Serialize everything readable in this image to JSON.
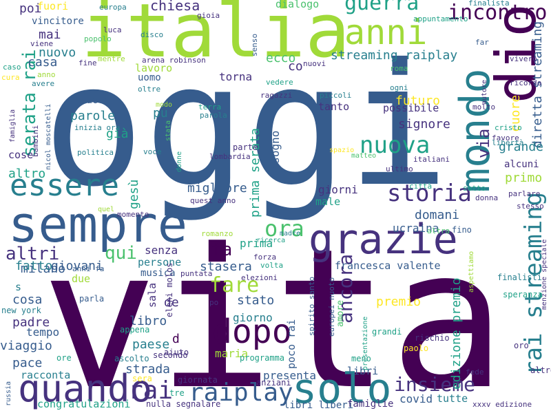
{
  "colors": {
    "background": "#ffffff",
    "palette": [
      "#440154",
      "#46327e",
      "#365c8d",
      "#277f8e",
      "#1fa187",
      "#4ac16d",
      "#a0da39",
      "#fde725"
    ]
  },
  "words": [
    {
      "text": "oggi"
    },
    {
      "text": "vita"
    },
    {
      "text": "italia"
    },
    {
      "text": "mondo"
    },
    {
      "text": "anni"
    },
    {
      "text": "dio"
    },
    {
      "text": "sempre"
    },
    {
      "text": "grazie"
    },
    {
      "text": "essere"
    },
    {
      "text": "solo"
    },
    {
      "text": "quando"
    },
    {
      "text": "dopo"
    },
    {
      "text": "guerra"
    },
    {
      "text": "incontro"
    },
    {
      "text": "storia"
    },
    {
      "text": "rai streaming"
    },
    {
      "text": "raiplay"
    },
    {
      "text": "rai"
    },
    {
      "text": "nuova"
    },
    {
      "text": "insieme"
    },
    {
      "text": "serata rai"
    },
    {
      "text": "ora"
    },
    {
      "text": "fare"
    },
    {
      "text": "ancora"
    },
    {
      "text": "qui"
    },
    {
      "text": "altri"
    },
    {
      "text": "fa"
    },
    {
      "text": "streaming raiplay"
    },
    {
      "text": "via"
    },
    {
      "text": "diretta streaming"
    },
    {
      "text": "edizione premio"
    },
    {
      "text": "chiesa"
    },
    {
      "text": "poi"
    },
    {
      "text": "fuori"
    },
    {
      "text": "dialogo"
    },
    {
      "text": "vincitore"
    },
    {
      "text": "mai"
    },
    {
      "text": "nuovo"
    },
    {
      "text": "casa"
    },
    {
      "text": "lavoro"
    },
    {
      "text": "co"
    },
    {
      "text": "ecco"
    },
    {
      "text": "torna"
    },
    {
      "text": "parole"
    },
    {
      "text": "già"
    },
    {
      "text": "pu"
    },
    {
      "text": "uomo"
    },
    {
      "text": "vuole"
    },
    {
      "text": "futuro"
    },
    {
      "text": "signore"
    },
    {
      "text": "possibile"
    },
    {
      "text": "tanto"
    },
    {
      "text": "cuore"
    },
    {
      "text": "grande"
    },
    {
      "text": "primo"
    },
    {
      "text": "alcuni"
    },
    {
      "text": "bisogno"
    },
    {
      "text": "prima serata"
    },
    {
      "text": "migliore"
    },
    {
      "text": "giorni"
    },
    {
      "text": "male"
    },
    {
      "text": "domani"
    },
    {
      "text": "ucraina"
    },
    {
      "text": "francesca valente"
    },
    {
      "text": "premio"
    },
    {
      "text": "stato"
    },
    {
      "text": "giorno"
    },
    {
      "text": "stasera"
    },
    {
      "text": "prima"
    },
    {
      "text": "persone"
    },
    {
      "text": "senza"
    },
    {
      "text": "milano"
    },
    {
      "text": "cosa"
    },
    {
      "text": "padre"
    },
    {
      "text": "tempo"
    },
    {
      "text": "viaggio"
    },
    {
      "text": "pace"
    },
    {
      "text": "racconta"
    },
    {
      "text": "strada"
    },
    {
      "text": "libro"
    },
    {
      "text": "paese"
    },
    {
      "text": "maria"
    },
    {
      "text": "poco rai"
    },
    {
      "text": "presenta"
    },
    {
      "text": "libri"
    },
    {
      "text": "covid"
    },
    {
      "text": "tutte"
    },
    {
      "text": "congratulazioni"
    },
    {
      "text": "libri liberi"
    },
    {
      "text": "famiglie"
    },
    {
      "text": "xxxv edizione"
    },
    {
      "text": "altro"
    },
    {
      "text": "fatto"
    },
    {
      "text": "giovani"
    },
    {
      "text": "cose"
    },
    {
      "text": "gesù"
    },
    {
      "text": "musica"
    },
    {
      "text": "due"
    },
    {
      "text": "s"
    },
    {
      "text": "de"
    },
    {
      "text": "sala"
    },
    {
      "text": "d"
    },
    {
      "text": "parla"
    },
    {
      "text": "anni fa"
    },
    {
      "text": "new york"
    },
    {
      "text": "ore"
    },
    {
      "text": "ascolto"
    },
    {
      "text": "secondo"
    },
    {
      "text": "eleni molos"
    },
    {
      "text": "aiuto"
    },
    {
      "text": "appena"
    },
    {
      "text": "giornata"
    },
    {
      "text": "nulla segnalare"
    },
    {
      "text": "tre"
    },
    {
      "text": "sera"
    },
    {
      "text": "anziani"
    },
    {
      "text": "russia"
    },
    {
      "text": "programma"
    },
    {
      "text": "spirito santo"
    },
    {
      "text": "europei nuoto"
    },
    {
      "text": "amore"
    },
    {
      "text": "presentazione"
    },
    {
      "text": "grandi"
    },
    {
      "text": "meno"
    },
    {
      "text": "paolo"
    },
    {
      "text": "rischio"
    },
    {
      "text": "fede"
    },
    {
      "text": "oro"
    },
    {
      "text": "altro nulla"
    },
    {
      "text": "menzione speciale"
    },
    {
      "text": "speranza"
    },
    {
      "text": "finalisti"
    },
    {
      "text": "aspettiamo"
    },
    {
      "text": "europa"
    },
    {
      "text": "gioia"
    },
    {
      "text": "appuntamento"
    },
    {
      "text": "finalista"
    },
    {
      "text": "luca"
    },
    {
      "text": "disco"
    },
    {
      "text": "popolo"
    },
    {
      "text": "viene"
    },
    {
      "text": "senso"
    },
    {
      "text": "far"
    },
    {
      "text": "vivere"
    },
    {
      "text": "fine"
    },
    {
      "text": "mentre"
    },
    {
      "text": "arena robinson"
    },
    {
      "text": "nuovi"
    },
    {
      "text": "roma"
    },
    {
      "text": "caso"
    },
    {
      "text": "cura"
    },
    {
      "text": "anno"
    },
    {
      "text": "avere"
    },
    {
      "text": "oltre"
    },
    {
      "text": "vedere"
    },
    {
      "text": "ragazzi"
    },
    {
      "text": "piccoli"
    },
    {
      "text": "ogni"
    },
    {
      "text": "autore"
    },
    {
      "text": "ricordo"
    },
    {
      "text": "molto"
    },
    {
      "text": "famiglia"
    },
    {
      "text": "nicol moscatelli"
    },
    {
      "text": "bambini"
    },
    {
      "text": "inizia ora"
    },
    {
      "text": "politica"
    },
    {
      "text": "voce"
    },
    {
      "text": "stata"
    },
    {
      "text": "modo"
    },
    {
      "text": "terra"
    },
    {
      "text": "parola"
    },
    {
      "text": "lombardia"
    },
    {
      "text": "parte"
    },
    {
      "text": "spazio"
    },
    {
      "text": "matteo"
    },
    {
      "text": "italiani"
    },
    {
      "text": "ultimo"
    },
    {
      "text": "cristo"
    },
    {
      "text": "favore"
    },
    {
      "text": "libertà"
    },
    {
      "text": "città"
    },
    {
      "text": "sotto"
    },
    {
      "text": "donna"
    },
    {
      "text": "parlare"
    },
    {
      "text": "stesso"
    },
    {
      "text": "donne"
    },
    {
      "text": "quest anno"
    },
    {
      "text": "quel"
    },
    {
      "text": "momento"
    },
    {
      "text": "romanzo"
    },
    {
      "text": "madre"
    },
    {
      "text": "ricerca"
    },
    {
      "text": "forza"
    },
    {
      "text": "volta"
    },
    {
      "text": "elezioni"
    },
    {
      "text": "puntata"
    },
    {
      "text": "po"
    },
    {
      "text": "altra"
    },
    {
      "text": "fino"
    }
  ]
}
